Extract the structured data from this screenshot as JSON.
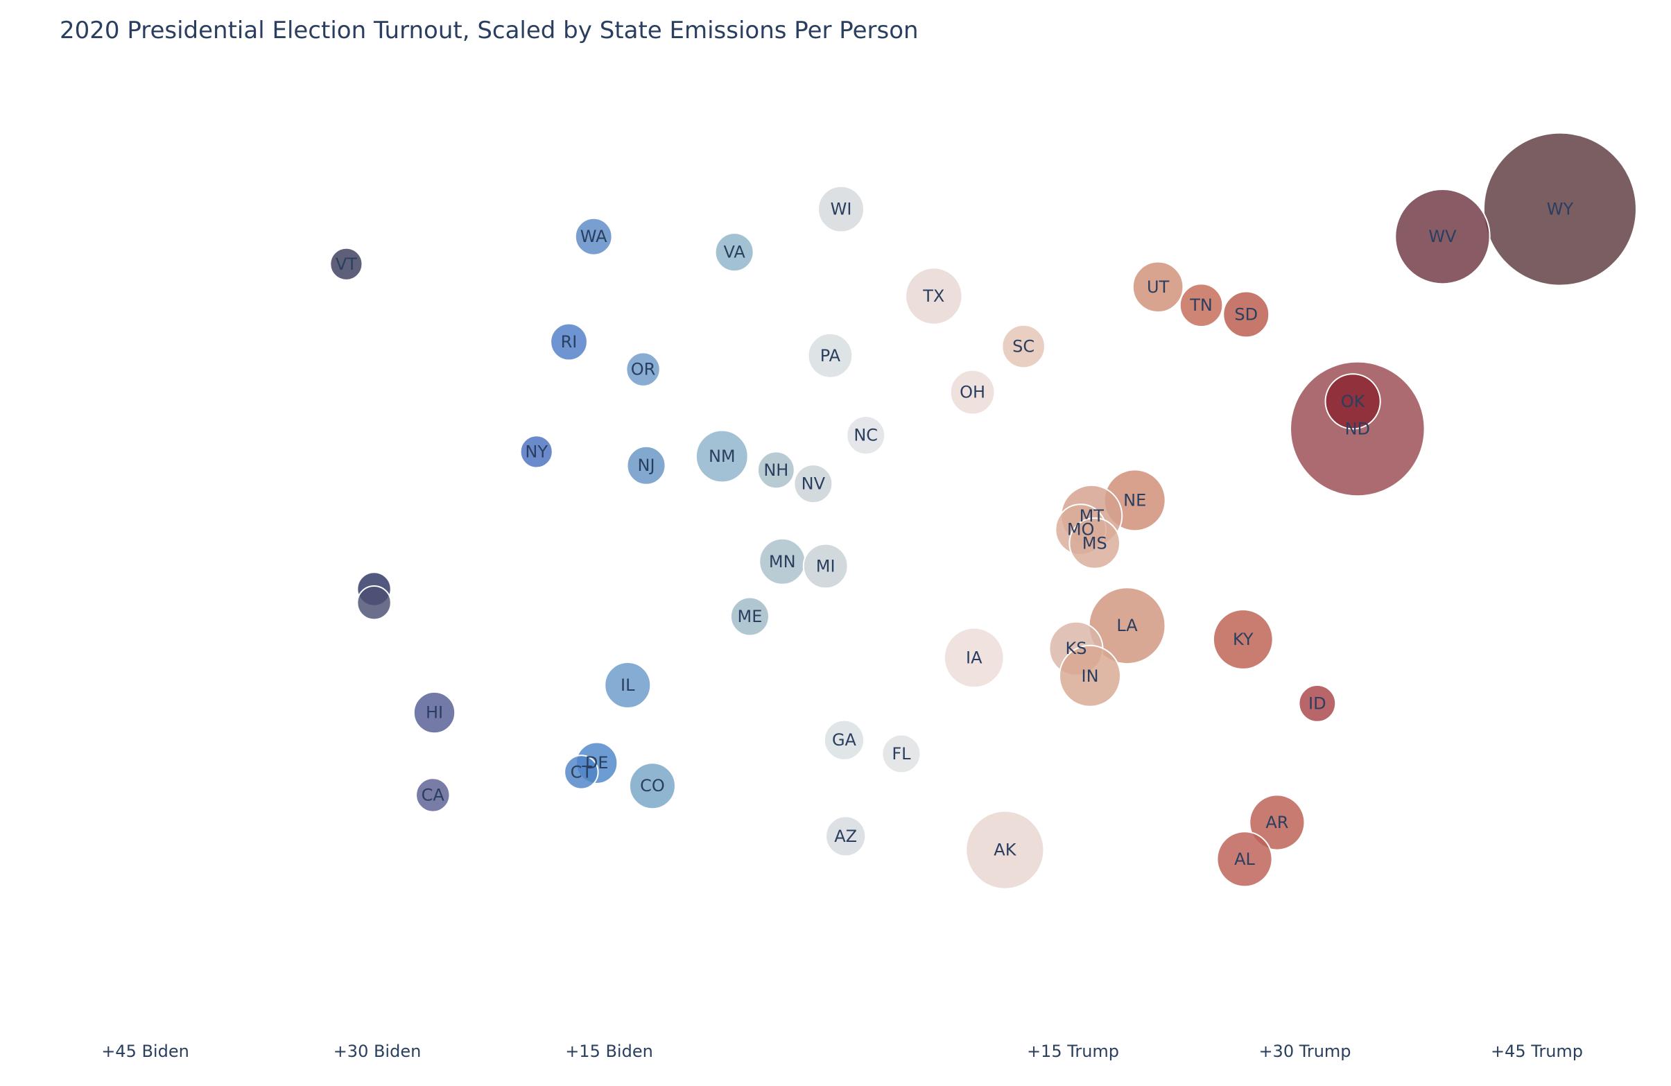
{
  "chart_data": {
    "type": "scatter",
    "title": "2020 Presidential Election Turnout, Scaled by State Emissions Per Person",
    "xlabel": "",
    "ylabel": "",
    "x_units": "margin (positive = Trump, negative = Biden)",
    "xlim": [
      -50,
      50
    ],
    "x_ticks": [
      {
        "value": -45,
        "label": "+45 Biden"
      },
      {
        "value": -30,
        "label": "+30 Biden"
      },
      {
        "value": -15,
        "label": "+15 Biden"
      },
      {
        "value": 15,
        "label": "+15 Trump"
      },
      {
        "value": 30,
        "label": "+30 Trump"
      },
      {
        "value": 45,
        "label": "+45 Trump"
      }
    ],
    "y_axis": "turnout (unlabeled)",
    "ylim": [
      0,
      100
    ],
    "size_meaning": "emissions per person (relative)",
    "grid": false,
    "color_scale": {
      "biden_dark": "#2d3561",
      "biden": "#3f7bc8",
      "neutral": "#dde1e4",
      "trump": "#c06a5c",
      "trump_dark": "#5a2a2e"
    },
    "points": [
      {
        "state": "WY",
        "x": 46.5,
        "y": 87.0,
        "size": 100,
        "color": "#5e3a3e",
        "show_label": true
      },
      {
        "state": "WV",
        "x": 38.9,
        "y": 84.0,
        "size": 62,
        "color": "#6e3743",
        "show_label": true
      },
      {
        "state": "ND",
        "x": 33.4,
        "y": 63.0,
        "size": 88,
        "color": "#9a4a50",
        "show_label": true
      },
      {
        "state": "OK",
        "x": 33.1,
        "y": 66.0,
        "size": 36,
        "color": "#8a2530",
        "show_label": true
      },
      {
        "state": "VT",
        "x": -32.0,
        "y": 81.0,
        "size": 21,
        "color": "#3b3d5c",
        "show_label": true
      },
      {
        "state": "WA",
        "x": -16.0,
        "y": 84.0,
        "size": 24,
        "color": "#5b8ac7",
        "show_label": true
      },
      {
        "state": "VA",
        "x": -6.9,
        "y": 82.3,
        "size": 25,
        "color": "#8eb3c8",
        "show_label": true
      },
      {
        "state": "WI",
        "x": 0.0,
        "y": 87.0,
        "size": 30,
        "color": "#d4d9dd",
        "show_label": true
      },
      {
        "state": "TX",
        "x": 6.0,
        "y": 77.5,
        "size": 37,
        "color": "#e6d7d3",
        "show_label": true
      },
      {
        "state": "UT",
        "x": 20.5,
        "y": 78.5,
        "size": 33,
        "color": "#d08f76",
        "show_label": true
      },
      {
        "state": "TN",
        "x": 23.3,
        "y": 76.5,
        "size": 28,
        "color": "#c46a56",
        "show_label": true
      },
      {
        "state": "SD",
        "x": 26.2,
        "y": 75.5,
        "size": 30,
        "color": "#b95a4c",
        "show_label": true
      },
      {
        "state": "SC",
        "x": 11.8,
        "y": 72.0,
        "size": 28,
        "color": "#e4c3b5",
        "show_label": true
      },
      {
        "state": "RI",
        "x": -17.6,
        "y": 72.5,
        "size": 24,
        "color": "#4e7ec8",
        "show_label": true
      },
      {
        "state": "OR",
        "x": -12.8,
        "y": 69.5,
        "size": 22,
        "color": "#6e9ac8",
        "show_label": true
      },
      {
        "state": "PA",
        "x": -0.7,
        "y": 71.0,
        "size": 29,
        "color": "#d7dde1",
        "show_label": true
      },
      {
        "state": "OH",
        "x": 8.5,
        "y": 67.0,
        "size": 29,
        "color": "#ebdbd5",
        "show_label": true
      },
      {
        "state": "NC",
        "x": 1.6,
        "y": 62.3,
        "size": 25,
        "color": "#dfe1e4",
        "show_label": true
      },
      {
        "state": "NY",
        "x": -19.7,
        "y": 60.5,
        "size": 21,
        "color": "#4b70bf",
        "show_label": true
      },
      {
        "state": "NJ",
        "x": -12.6,
        "y": 59.0,
        "size": 25,
        "color": "#6695c4",
        "show_label": true
      },
      {
        "state": "NM",
        "x": -7.7,
        "y": 60.0,
        "size": 34,
        "color": "#8db3ca",
        "show_label": true
      },
      {
        "state": "NH",
        "x": -4.2,
        "y": 58.5,
        "size": 24,
        "color": "#a8bfc9",
        "show_label": true
      },
      {
        "state": "NV",
        "x": -1.8,
        "y": 57.0,
        "size": 25,
        "color": "#c9d2d7",
        "show_label": true
      },
      {
        "state": "NE",
        "x": 19.0,
        "y": 55.2,
        "size": 40,
        "color": "#cf8c75",
        "show_label": true
      },
      {
        "state": "MT",
        "x": 16.2,
        "y": 53.5,
        "size": 40,
        "color": "#d4a08c",
        "show_label": true
      },
      {
        "state": "MO",
        "x": 15.5,
        "y": 52.0,
        "size": 33,
        "color": "#d9ac9a",
        "show_label": true
      },
      {
        "state": "MS",
        "x": 16.4,
        "y": 50.5,
        "size": 33,
        "color": "#d9ac9a",
        "show_label": true
      },
      {
        "state": "MN",
        "x": -3.8,
        "y": 48.5,
        "size": 30,
        "color": "#a9c1cb",
        "show_label": true
      },
      {
        "state": "MI",
        "x": -1.0,
        "y": 48.0,
        "size": 29,
        "color": "#c7d1d6",
        "show_label": true
      },
      {
        "state": "ME",
        "x": -5.9,
        "y": 42.5,
        "size": 25,
        "color": "#9fb9c7",
        "show_label": true
      },
      {
        "state": "-",
        "x": -30.2,
        "y": 45.5,
        "size": 22,
        "color": "#2d3561",
        "show_label": false
      },
      {
        "state": "-",
        "x": -30.2,
        "y": 44.0,
        "size": 22,
        "color": "#4a4f73",
        "show_label": false
      },
      {
        "state": "LA",
        "x": 18.5,
        "y": 41.5,
        "size": 50,
        "color": "#d0957e",
        "show_label": true
      },
      {
        "state": "KS",
        "x": 15.2,
        "y": 39.0,
        "size": 35,
        "color": "#dbb5a6",
        "show_label": true
      },
      {
        "state": "KY",
        "x": 26.0,
        "y": 40.0,
        "size": 39,
        "color": "#bd5f50",
        "show_label": true
      },
      {
        "state": "IA",
        "x": 8.6,
        "y": 38.0,
        "size": 39,
        "color": "#ecdcd8",
        "show_label": true
      },
      {
        "state": "IN",
        "x": 16.1,
        "y": 36.0,
        "size": 40,
        "color": "#d8a791",
        "show_label": true
      },
      {
        "state": "IL",
        "x": -13.8,
        "y": 35.0,
        "size": 30,
        "color": "#6a9bcb",
        "show_label": true
      },
      {
        "state": "HI",
        "x": -26.3,
        "y": 32.0,
        "size": 27,
        "color": "#565d95",
        "show_label": true
      },
      {
        "state": "ID",
        "x": 30.8,
        "y": 33.0,
        "size": 24,
        "color": "#a84448",
        "show_label": true
      },
      {
        "state": "GA",
        "x": 0.2,
        "y": 29.0,
        "size": 26,
        "color": "#d9dfe2",
        "show_label": true
      },
      {
        "state": "FL",
        "x": 3.9,
        "y": 27.5,
        "size": 25,
        "color": "#dfe0e3",
        "show_label": true
      },
      {
        "state": "DE",
        "x": -15.8,
        "y": 26.5,
        "size": 27,
        "color": "#4c86c8",
        "show_label": true
      },
      {
        "state": "CT",
        "x": -16.8,
        "y": 25.5,
        "size": 22,
        "color": "#4f84c7",
        "show_label": true
      },
      {
        "state": "CO",
        "x": -12.2,
        "y": 24.0,
        "size": 30,
        "color": "#76a5c6",
        "show_label": true
      },
      {
        "state": "CA",
        "x": -26.4,
        "y": 23.0,
        "size": 22,
        "color": "#5a5f94",
        "show_label": true
      },
      {
        "state": "AZ",
        "x": 0.3,
        "y": 18.5,
        "size": 26,
        "color": "#d5dbdf",
        "show_label": true
      },
      {
        "state": "AK",
        "x": 10.6,
        "y": 17.0,
        "size": 51,
        "color": "#e8d5cf",
        "show_label": true
      },
      {
        "state": "AR",
        "x": 28.2,
        "y": 20.0,
        "size": 36,
        "color": "#bc5e52",
        "show_label": true
      },
      {
        "state": "AL",
        "x": 26.1,
        "y": 16.0,
        "size": 36,
        "color": "#bd5f55",
        "show_label": true
      }
    ]
  }
}
